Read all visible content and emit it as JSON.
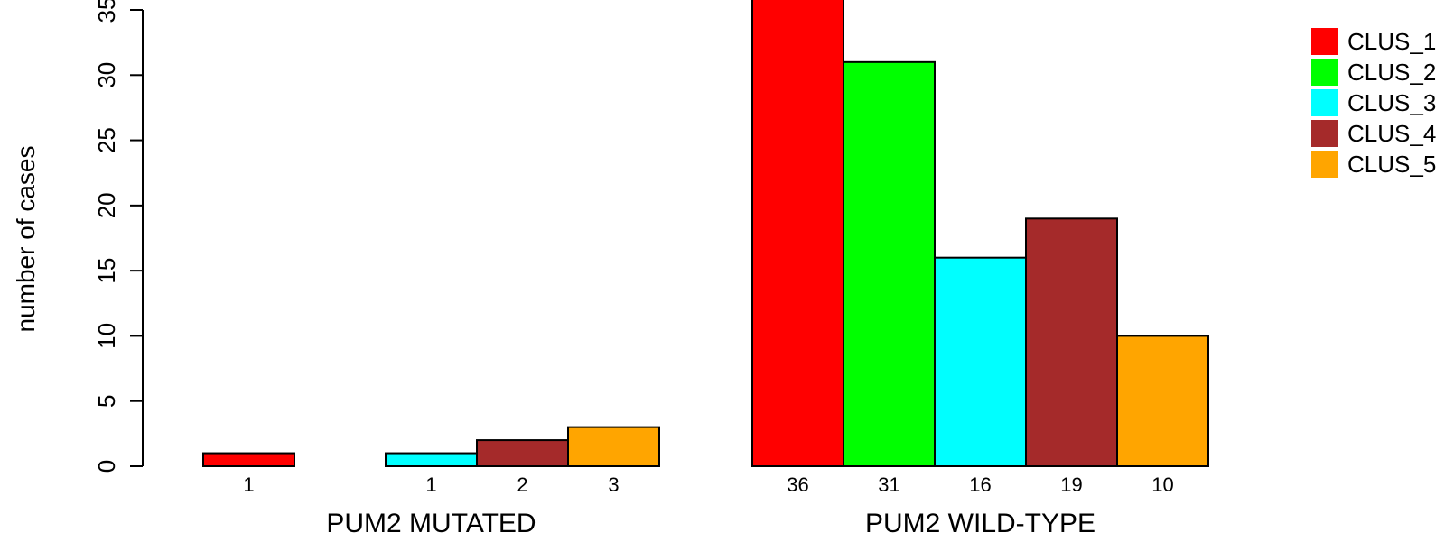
{
  "chart_data": {
    "type": "bar",
    "ylabel": "number of cases",
    "ylim": [
      0,
      35
    ],
    "yticks": [
      0,
      5,
      10,
      15,
      20,
      25,
      30,
      35
    ],
    "groups": [
      {
        "label": "PUM2 MUTATED",
        "values": [
          1,
          0,
          1,
          2,
          3
        ],
        "count_labels": [
          "1",
          "",
          "1",
          "2",
          "3"
        ]
      },
      {
        "label": "PUM2 WILD-TYPE",
        "values": [
          36,
          31,
          16,
          19,
          10
        ],
        "count_labels": [
          "36",
          "31",
          "16",
          "19",
          "10"
        ]
      }
    ],
    "series": [
      {
        "name": "CLUS_1",
        "color": "#ff0000"
      },
      {
        "name": "CLUS_2",
        "color": "#00ff00"
      },
      {
        "name": "CLUS_3",
        "color": "#00ffff"
      },
      {
        "name": "CLUS_4",
        "color": "#a52a2a"
      },
      {
        "name": "CLUS_5",
        "color": "#ffa500"
      }
    ],
    "legend_position": "top-right",
    "grid": false
  }
}
